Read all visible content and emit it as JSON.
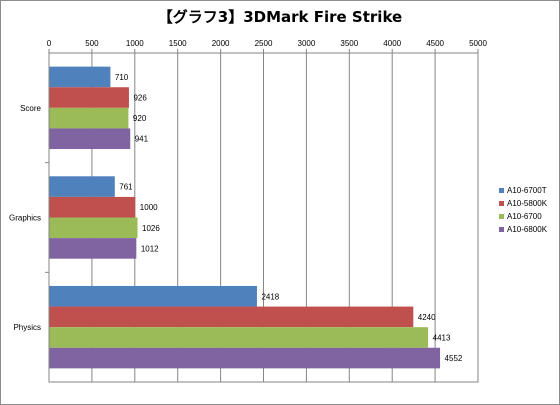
{
  "chart_data": {
    "type": "bar",
    "orientation": "horizontal",
    "title": "【グラフ3】3DMark Fire Strike",
    "xlabel": "",
    "ylabel": "",
    "xlim": [
      0,
      5000
    ],
    "xticks": [
      "0",
      "500",
      "1000",
      "1500",
      "2000",
      "2500",
      "3000",
      "3500",
      "4000",
      "4500",
      "5000"
    ],
    "x_axis_position": "top",
    "grid": true,
    "legend_position": "right",
    "categories": [
      "Score",
      "Graphics",
      "Physics"
    ],
    "series": [
      {
        "name": "A10-6700T",
        "color": "#4f81bd",
        "values": [
          710,
          761,
          2418
        ]
      },
      {
        "name": "A10-5800K",
        "color": "#c0504d",
        "values": [
          926,
          1000,
          4240
        ]
      },
      {
        "name": "A10-6700",
        "color": "#9bbb59",
        "values": [
          920,
          1026,
          4413
        ]
      },
      {
        "name": "A10-6800K",
        "color": "#8064a2",
        "values": [
          941,
          1012,
          4552
        ]
      }
    ]
  }
}
